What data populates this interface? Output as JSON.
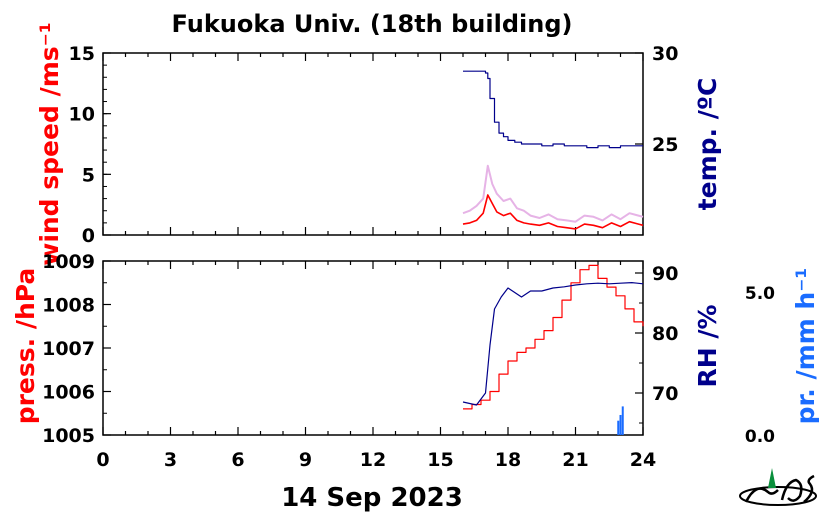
{
  "title": "Fukuoka Univ. (18th building)",
  "date_label": "14 Sep 2023",
  "colors": {
    "wind": "#ff0000",
    "wind_raw": "#e6b3e6",
    "temp": "#00008b",
    "press": "#ff0000",
    "rh": "#00008b",
    "precip": "#1a6cff"
  },
  "chart_data": [
    {
      "type": "line",
      "panel": "top",
      "xlabel": "",
      "xlim": [
        0,
        24
      ],
      "x_ticks": [
        0,
        3,
        6,
        9,
        12,
        15,
        18,
        21,
        24
      ],
      "y_left": {
        "label": "wind speed /ms⁻¹",
        "range": [
          0,
          15
        ],
        "ticks": [
          "0",
          "5",
          "10",
          "15"
        ],
        "tick_values": [
          0,
          5,
          10,
          15
        ]
      },
      "y_right": {
        "label": "temp. /ºC",
        "range": [
          20,
          30
        ],
        "ticks": [
          "25",
          "30"
        ],
        "tick_values": [
          25,
          30
        ]
      },
      "grid": false,
      "series": [
        {
          "axis": "left",
          "role": "wind_mean",
          "x": [
            16.0,
            16.3,
            16.6,
            16.9,
            17.1,
            17.3,
            17.5,
            17.8,
            18.1,
            18.4,
            18.7,
            19.0,
            19.4,
            19.8,
            20.2,
            20.6,
            21.0,
            21.4,
            21.8,
            22.2,
            22.6,
            23.0,
            23.4,
            23.8,
            24.0
          ],
          "y": [
            0.9,
            1.0,
            1.2,
            1.8,
            3.3,
            2.6,
            1.9,
            1.6,
            1.8,
            1.2,
            1.0,
            0.9,
            0.8,
            1.0,
            0.7,
            0.6,
            0.5,
            0.9,
            0.8,
            0.6,
            1.0,
            0.7,
            1.1,
            0.9,
            0.8
          ]
        },
        {
          "axis": "left",
          "role": "wind_gust",
          "x": [
            16.0,
            16.3,
            16.6,
            16.9,
            17.1,
            17.3,
            17.5,
            17.8,
            18.1,
            18.4,
            18.7,
            19.0,
            19.4,
            19.8,
            20.2,
            20.6,
            21.0,
            21.4,
            21.8,
            22.2,
            22.6,
            23.0,
            23.4,
            23.8,
            24.0
          ],
          "y": [
            1.8,
            2.0,
            2.4,
            3.0,
            5.7,
            4.2,
            3.4,
            2.8,
            3.0,
            2.2,
            2.0,
            1.6,
            1.4,
            1.7,
            1.3,
            1.2,
            1.1,
            1.6,
            1.5,
            1.2,
            1.7,
            1.3,
            1.8,
            1.6,
            1.5
          ]
        },
        {
          "axis": "right",
          "role": "temperature",
          "x": [
            16.0,
            16.5,
            17.0,
            17.1,
            17.2,
            17.4,
            17.6,
            17.8,
            18.0,
            18.3,
            18.6,
            19.0,
            19.5,
            20.0,
            20.5,
            21.0,
            21.5,
            22.0,
            22.5,
            23.0,
            23.5,
            24.0
          ],
          "y": [
            29.0,
            29.0,
            28.9,
            28.6,
            27.5,
            26.2,
            25.6,
            25.4,
            25.2,
            25.1,
            25.0,
            25.0,
            24.9,
            25.0,
            24.9,
            24.9,
            24.8,
            24.9,
            24.8,
            24.9,
            24.9,
            24.9
          ]
        }
      ]
    },
    {
      "type": "line",
      "panel": "bottom",
      "xlabel": "14 Sep 2023",
      "xlim": [
        0,
        24
      ],
      "x_ticks": [
        0,
        3,
        6,
        9,
        12,
        15,
        18,
        21,
        24
      ],
      "x_tick_labels": [
        "0",
        "3",
        "6",
        "9",
        "12",
        "15",
        "18",
        "21",
        "24"
      ],
      "y_left": {
        "label": "press. /hPa",
        "range": [
          1005,
          1009
        ],
        "ticks": [
          "1005",
          "1006",
          "1007",
          "1008",
          "1009"
        ],
        "tick_values": [
          1005,
          1006,
          1007,
          1008,
          1009
        ]
      },
      "y_right": {
        "label": "RH /%",
        "range": [
          63,
          92
        ],
        "ticks": [
          "70",
          "80",
          "90"
        ],
        "tick_values": [
          70,
          80,
          90
        ]
      },
      "y_precip": {
        "label": "pr. /mm h⁻¹",
        "range": [
          0,
          5.0
        ],
        "ticks": [
          "0.0",
          "5.0"
        ],
        "tick_values": [
          0.0,
          5.0
        ]
      },
      "grid": false,
      "series": [
        {
          "axis": "left",
          "role": "pressure",
          "x": [
            16.0,
            16.4,
            16.8,
            17.2,
            17.6,
            18.0,
            18.4,
            18.8,
            19.2,
            19.6,
            20.0,
            20.4,
            20.8,
            21.2,
            21.6,
            22.0,
            22.4,
            22.8,
            23.2,
            23.6,
            24.0
          ],
          "y": [
            1005.6,
            1005.7,
            1005.8,
            1006.0,
            1006.4,
            1006.7,
            1006.9,
            1007.0,
            1007.2,
            1007.4,
            1007.7,
            1008.1,
            1008.5,
            1008.8,
            1008.9,
            1008.6,
            1008.4,
            1008.2,
            1007.9,
            1007.6,
            1007.5
          ]
        },
        {
          "axis": "right",
          "role": "relative_humidity",
          "x": [
            16.0,
            16.6,
            17.0,
            17.2,
            17.4,
            17.7,
            18.0,
            18.2,
            18.6,
            19.0,
            19.5,
            20.0,
            20.5,
            21.0,
            21.5,
            22.0,
            22.5,
            23.0,
            23.5,
            24.0
          ],
          "y": [
            68.5,
            68.0,
            70.0,
            78.0,
            84.0,
            86.0,
            87.5,
            87.0,
            86.0,
            87.0,
            87.0,
            87.5,
            87.7,
            88.0,
            88.2,
            88.3,
            88.2,
            88.3,
            88.4,
            88.2
          ]
        },
        {
          "axis": "precip",
          "role": "precipitation",
          "type": "bar",
          "x": [
            22.9,
            23.0,
            23.1
          ],
          "y": [
            0.5,
            0.7,
            1.0
          ]
        }
      ]
    }
  ]
}
